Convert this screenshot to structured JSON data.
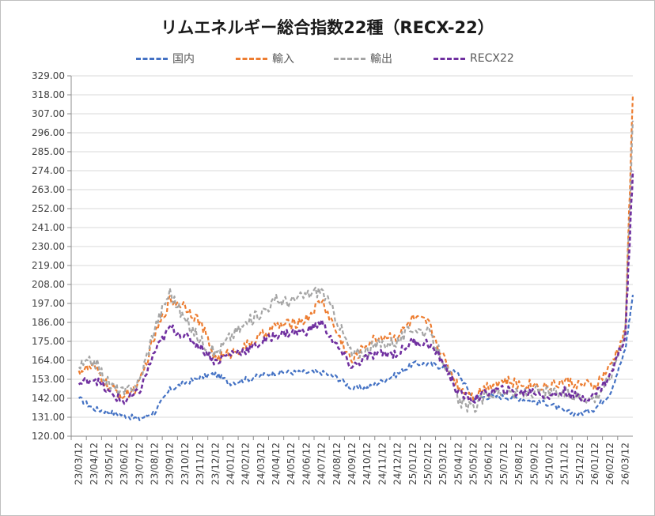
{
  "chart_data": {
    "type": "line",
    "title": "リムエネルギー総合指数22種（RECX-22）",
    "xlabel": "",
    "ylabel": "",
    "ylim": [
      120,
      329
    ],
    "yticks": [
      "329.00",
      "318.00",
      "307.00",
      "296.00",
      "285.00",
      "274.00",
      "263.00",
      "252.00",
      "241.00",
      "230.00",
      "219.00",
      "208.00",
      "197.00",
      "186.00",
      "175.00",
      "164.00",
      "153.00",
      "142.00",
      "131.00",
      "120.00"
    ],
    "xticks": [
      "23/03/12",
      "23/04/12",
      "23/05/12",
      "23/06/12",
      "23/07/12",
      "23/08/12",
      "23/09/12",
      "23/10/12",
      "23/11/12",
      "23/12/12",
      "24/01/12",
      "24/02/12",
      "24/03/12",
      "24/04/12",
      "24/05/12",
      "24/06/12",
      "24/07/12",
      "24/08/12",
      "24/09/12",
      "24/10/12",
      "24/11/12",
      "24/12/12",
      "25/01/12",
      "25/02/12",
      "25/03/12",
      "25/04/12",
      "25/05/12",
      "25/06/12",
      "25/07/12",
      "25/08/12",
      "25/09/12",
      "25/10/12",
      "25/11/12",
      "25/12/12",
      "26/01/12",
      "26/02/12",
      "26/03/12"
    ],
    "x": [
      0,
      1,
      2,
      3,
      4,
      5,
      6,
      7,
      8,
      9,
      10,
      11,
      12,
      13,
      14,
      15,
      16,
      17,
      18,
      19,
      20,
      21,
      22,
      23,
      24,
      25,
      26,
      27,
      28,
      29,
      30,
      31,
      32,
      33,
      34,
      35,
      36,
      36.5
    ],
    "grid": true,
    "legend_position": "top",
    "series": [
      {
        "name": "国内",
        "color": "#4472c4",
        "values": [
          142,
          136,
          134,
          132,
          130,
          134,
          147,
          151,
          154,
          156,
          151,
          153,
          155,
          157,
          157,
          157,
          157,
          154,
          148,
          148,
          152,
          156,
          162,
          162,
          160,
          156,
          142,
          143,
          143,
          142,
          140,
          139,
          134,
          133,
          136,
          145,
          170,
          202
        ]
      },
      {
        "name": "輸入",
        "color": "#ed7d31",
        "values": [
          158,
          160,
          148,
          143,
          150,
          178,
          199,
          196,
          186,
          165,
          168,
          172,
          178,
          184,
          185,
          188,
          199,
          180,
          163,
          174,
          178,
          178,
          188,
          186,
          166,
          149,
          143,
          150,
          152,
          150,
          150,
          149,
          152,
          150,
          149,
          160,
          180,
          318
        ]
      },
      {
        "name": "輸出",
        "color": "#a5a5a5",
        "values": [
          160,
          164,
          150,
          145,
          152,
          183,
          204,
          187,
          176,
          168,
          178,
          185,
          192,
          199,
          198,
          202,
          205,
          188,
          167,
          170,
          174,
          175,
          183,
          180,
          165,
          140,
          136,
          145,
          146,
          144,
          146,
          145,
          145,
          143,
          142,
          154,
          182,
          303
        ]
      },
      {
        "name": "RECX22",
        "color": "#7030a0",
        "values": [
          150,
          154,
          145,
          140,
          146,
          169,
          183,
          178,
          172,
          163,
          168,
          170,
          174,
          179,
          180,
          181,
          186,
          172,
          160,
          166,
          168,
          168,
          175,
          174,
          163,
          145,
          141,
          146,
          147,
          145,
          146,
          143,
          146,
          142,
          144,
          155,
          178,
          274
        ]
      }
    ]
  }
}
